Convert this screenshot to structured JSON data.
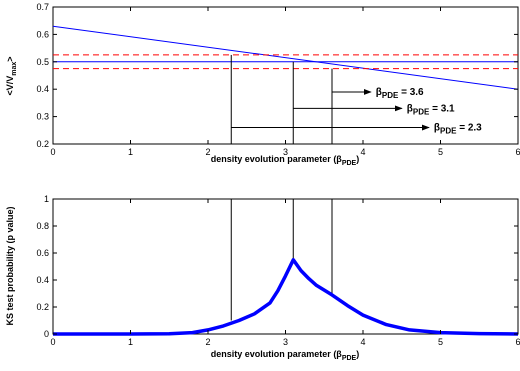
{
  "chart_data": [
    {
      "type": "line",
      "xlabel_main": "density evolution parameter (β",
      "xlabel_sub": "PDE",
      "xlabel_end": ")",
      "ylabel_main": "<V/V",
      "ylabel_sub": "max",
      "ylabel_end": ">",
      "xlim": [
        0,
        6
      ],
      "ylim": [
        0.2,
        0.7
      ],
      "xticks": [
        "0",
        "1",
        "2",
        "3",
        "4",
        "5",
        "6"
      ],
      "yticks": [
        "0.2",
        "0.3",
        "0.4",
        "0.5",
        "0.6",
        "0.7"
      ],
      "grid": false,
      "series": [
        {
          "color": "#0000ff",
          "style": "solid",
          "x": [
            0,
            6
          ],
          "y": [
            0.63,
            0.4
          ]
        },
        {
          "color": "#0000ff",
          "style": "solid",
          "x": [
            0,
            6
          ],
          "y": [
            0.5,
            0.5
          ]
        },
        {
          "color": "#ff0000",
          "style": "dashed",
          "x": [
            0,
            6
          ],
          "y": [
            0.525,
            0.525
          ]
        },
        {
          "color": "#ff0000",
          "style": "dashed",
          "x": [
            0,
            6
          ],
          "y": [
            0.475,
            0.475
          ]
        }
      ],
      "vlines": [
        {
          "x": 2.3,
          "y0": 0.2,
          "y1": 0.525
        },
        {
          "x": 3.1,
          "y0": 0.2,
          "y1": 0.5
        },
        {
          "x": 3.6,
          "y0": 0.2,
          "y1": 0.475
        }
      ],
      "annotations": [
        {
          "text": "β",
          "sub": "PDE",
          "value": "= 3.6",
          "arrow_from": [
            3.6,
            0.39
          ],
          "arrow_to": [
            4.1,
            0.39
          ]
        },
        {
          "text": "β",
          "sub": "PDE",
          "value": "= 3.1",
          "arrow_from": [
            3.1,
            0.33
          ],
          "arrow_to": [
            4.5,
            0.33
          ]
        },
        {
          "text": "β",
          "sub": "PDE",
          "value": "= 2.3",
          "arrow_from": [
            2.3,
            0.26
          ],
          "arrow_to": [
            4.85,
            0.26
          ]
        }
      ]
    },
    {
      "type": "line",
      "xlabel_main": "density evolution parameter (β",
      "xlabel_sub": "PDE",
      "xlabel_end": ")",
      "ylabel": "KS test probability (p value)",
      "xlim": [
        0,
        6
      ],
      "ylim": [
        0,
        1
      ],
      "xticks": [
        "0",
        "1",
        "2",
        "3",
        "4",
        "5",
        "6"
      ],
      "yticks": [
        "0",
        "0.2",
        "0.4",
        "0.6",
        "0.8",
        "1"
      ],
      "grid": false,
      "series": [
        {
          "color": "#0000ff",
          "style": "solid",
          "x": [
            0,
            1.0,
            1.5,
            1.8,
            2.0,
            2.2,
            2.4,
            2.6,
            2.8,
            2.9,
            3.0,
            3.1,
            3.2,
            3.3,
            3.4,
            3.6,
            3.8,
            4.0,
            4.3,
            4.6,
            5.0,
            5.5,
            6.0
          ],
          "y": [
            0,
            0,
            0.002,
            0.01,
            0.03,
            0.06,
            0.1,
            0.15,
            0.23,
            0.32,
            0.43,
            0.55,
            0.47,
            0.41,
            0.36,
            0.29,
            0.21,
            0.14,
            0.07,
            0.03,
            0.01,
            0.003,
            0
          ]
        }
      ],
      "vlines": [
        {
          "x": 2.3,
          "y0": 0.1,
          "y1": 1.0
        },
        {
          "x": 3.1,
          "y0": 0.55,
          "y1": 1.0
        },
        {
          "x": 3.6,
          "y0": 0.29,
          "y1": 1.0
        }
      ]
    }
  ]
}
